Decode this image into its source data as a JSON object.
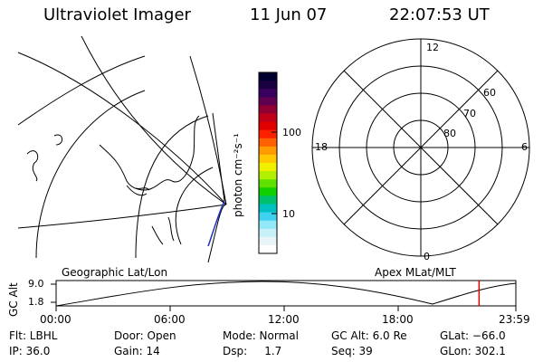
{
  "header": {
    "title": "Ultraviolet Imager",
    "date": "11 Jun 07",
    "time": "22:07:53 UT"
  },
  "colorbar": {
    "unit_label": "photon cm⁻²s⁻¹",
    "ticks": [
      "100",
      "10"
    ],
    "colors": [
      "#000030",
      "#1a0040",
      "#3a0060",
      "#600050",
      "#900030",
      "#c00018",
      "#e00000",
      "#ff2000",
      "#ff6000",
      "#ff9a00",
      "#ffc800",
      "#f0f000",
      "#b0f000",
      "#60e000",
      "#10d000",
      "#00c070",
      "#00c0c0",
      "#40d0f0",
      "#90e8f8",
      "#c8f0f8",
      "#e8f4f8",
      "#ffffff"
    ]
  },
  "left_panel": {
    "label": "Geographic Lat/Lon"
  },
  "polar_panel": {
    "label": "Apex MLat/MLT",
    "mlt_labels": {
      "top": "12",
      "left": "18",
      "right": "6",
      "bottom": "0"
    },
    "lat_labels": [
      "60",
      "70",
      "80"
    ]
  },
  "timeline": {
    "ylabel": "GC Alt",
    "y_ticks": [
      "9.0",
      "1.8"
    ],
    "x_ticks": [
      "00:00",
      "06:00",
      "12:00",
      "18:00",
      "23:59"
    ],
    "marker_color": "#e00000",
    "marker_time_fraction": 0.92
  },
  "meta": {
    "row1": {
      "flt": "Flt: LBHL",
      "door": "Door: Open",
      "mode": "Mode: Normal",
      "gc_alt": "GC Alt: 6.0 Re",
      "glat": "GLat: −66.0"
    },
    "row2": {
      "ip": "IP: 36.0",
      "gain": "Gain: 14",
      "dsp": "Dsp:     1.7",
      "seq": "Seq: 39",
      "glon": "GLon: 302.1"
    }
  }
}
